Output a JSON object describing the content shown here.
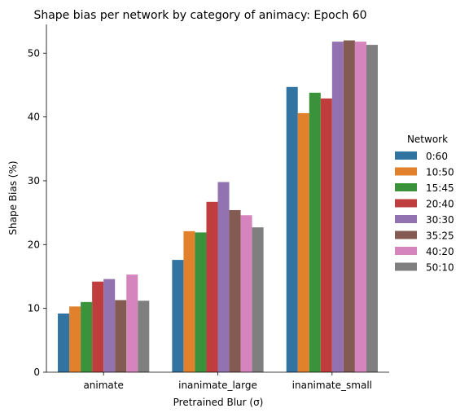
{
  "chart_data": {
    "type": "bar",
    "title": "Shape bias per network by category of animacy: Epoch 60",
    "xlabel": "Pretrained Blur (σ)",
    "ylabel": "Shape Bias (%)",
    "ylim": [
      0,
      54.5
    ],
    "yticks": [
      0,
      10,
      20,
      30,
      40,
      50
    ],
    "grid": false,
    "categories": [
      "animate",
      "inanimate_large",
      "inanimate_small"
    ],
    "legend": {
      "title": "Network",
      "placement": "right"
    },
    "series": [
      {
        "name": "0:60",
        "color": "#3274a1",
        "values": [
          9.2,
          17.6,
          44.7
        ]
      },
      {
        "name": "10:50",
        "color": "#e1812c",
        "values": [
          10.3,
          22.1,
          40.6
        ]
      },
      {
        "name": "15:45",
        "color": "#3a923a",
        "values": [
          11.0,
          21.9,
          43.8
        ]
      },
      {
        "name": "20:40",
        "color": "#c03d3e",
        "values": [
          14.2,
          26.7,
          42.9
        ]
      },
      {
        "name": "30:30",
        "color": "#9372b2",
        "values": [
          14.6,
          29.8,
          51.8
        ]
      },
      {
        "name": "35:25",
        "color": "#845b53",
        "values": [
          11.3,
          25.4,
          52.0
        ]
      },
      {
        "name": "40:20",
        "color": "#d684bd",
        "values": [
          15.3,
          24.6,
          51.8
        ]
      },
      {
        "name": "50:10",
        "color": "#7f7f7f",
        "values": [
          11.2,
          22.7,
          51.3
        ]
      }
    ]
  }
}
